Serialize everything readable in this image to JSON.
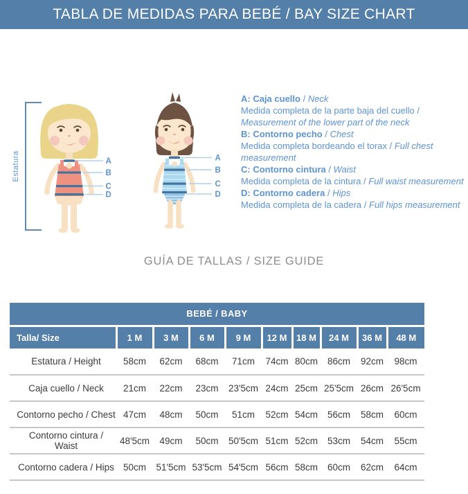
{
  "header": {
    "title": "TABLA DE MEDIDAS PARA BEBÉ / BAY SIZE CHART"
  },
  "figure": {
    "height_label": "Estatura",
    "markers": [
      "A",
      "B",
      "C",
      "D"
    ],
    "legend": [
      {
        "letter": "A",
        "term_es": "Caja cuello",
        "term_en": "Neck",
        "desc_es": "Medida completa de la parte baja del cuello",
        "desc_en": "Measurement of the lower part of the neck"
      },
      {
        "letter": "B",
        "term_es": "Contorno pecho",
        "term_en": "Chest",
        "desc_es": "Medida completa bordeando el torax",
        "desc_en": "Full chest measurement"
      },
      {
        "letter": "C",
        "term_es": "Contorno cintura",
        "term_en": "Waist",
        "desc_es": "Medida completa de la cintura",
        "desc_en": "Full waist measurement"
      },
      {
        "letter": "D",
        "term_es": "Contorno cadera",
        "term_en": "Hips",
        "desc_es": "Medida completa de la cadera",
        "desc_en": "Full hips measurement"
      }
    ]
  },
  "size_guide": {
    "heading": "GUÍA DE TALLAS / SIZE GUIDE",
    "table": {
      "group_header": "BEBÉ / BABY",
      "row_header": "Talla/ Size",
      "sizes": [
        "1 M",
        "3 M",
        "6 M",
        "9 M",
        "12 M",
        "18 M",
        "24 M",
        "36 M",
        "48 M"
      ],
      "rows": [
        {
          "label": "Estatura / Height",
          "values": [
            "58cm",
            "62cm",
            "68cm",
            "71cm",
            "74cm",
            "80cm",
            "86cm",
            "92cm",
            "98cm"
          ]
        },
        {
          "label": "Caja cuello / Neck",
          "values": [
            "21cm",
            "22cm",
            "23cm",
            "23'5cm",
            "24cm",
            "25cm",
            "25'5cm",
            "26cm",
            "26'5cm"
          ]
        },
        {
          "label": "Contorno pecho / Chest",
          "values": [
            "47cm",
            "48cm",
            "50cm",
            "51cm",
            "52cm",
            "54cm",
            "56cm",
            "58cm",
            "60cm"
          ]
        },
        {
          "label": "Contorno cintura / Waist",
          "values": [
            "48'5cm",
            "49cm",
            "50cm",
            "50'5cm",
            "51cm",
            "52cm",
            "53cm",
            "54cm",
            "55cm"
          ]
        },
        {
          "label": "Contorno cadera / Hips",
          "values": [
            "50cm",
            "51'5cm",
            "53'5cm",
            "54'5cm",
            "56cm",
            "58cm",
            "60cm",
            "62cm",
            "64cm"
          ]
        }
      ]
    }
  },
  "colors": {
    "header_blue": "#537fa9",
    "legend_blue": "#5d93d1",
    "band_dark": "#44749e",
    "line_light": "#b3cfe6",
    "heading_gray": "#8f8d90",
    "row_line": "#c7c7c7",
    "table_text": "#3b3b3b"
  }
}
